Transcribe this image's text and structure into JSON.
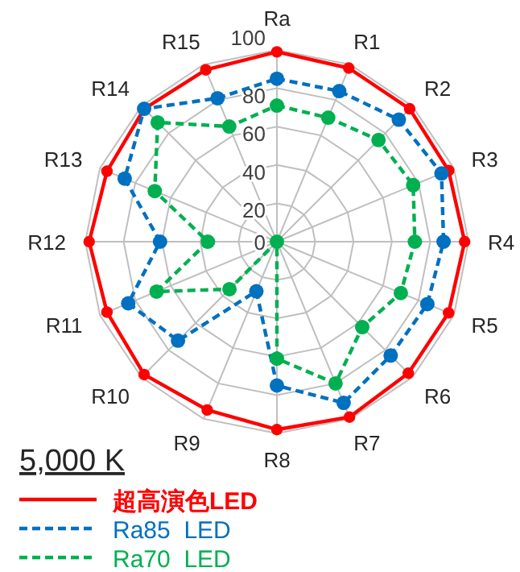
{
  "chart_data": {
    "type": "radar",
    "categories": [
      "Ra",
      "R1",
      "R2",
      "R3",
      "R4",
      "R5",
      "R6",
      "R7",
      "R8",
      "R9",
      "R10",
      "R11",
      "R12",
      "R13",
      "R14",
      "R15"
    ],
    "ylim": [
      0,
      100
    ],
    "yticks": [
      0,
      20,
      40,
      60,
      80,
      100
    ],
    "grid": true,
    "legend": "bottom left",
    "marker": "circle",
    "annotations": [
      "5,000 K"
    ],
    "series": [
      {
        "name": "超高演色LED",
        "color": "#ff0000",
        "line_style": "solid",
        "values": [
          99,
          98,
          98,
          97,
          98,
          97,
          97,
          99,
          98,
          95,
          98,
          96,
          98,
          96,
          98,
          97
        ]
      },
      {
        "name": "Ra85  LED",
        "color": "#0070c0",
        "line_style": "dashed",
        "values": [
          85,
          85,
          90,
          93,
          87,
          85,
          84,
          91,
          75,
          28,
          73,
          84,
          61,
          86,
          98,
          81
        ]
      },
      {
        "name": "Ra70  LED",
        "color": "#00b050",
        "line_style": "dashed",
        "values": [
          71,
          70,
          75,
          77,
          72,
          70,
          63,
          80,
          61,
          0,
          35,
          68,
          36,
          69,
          88,
          65
        ]
      }
    ]
  }
}
